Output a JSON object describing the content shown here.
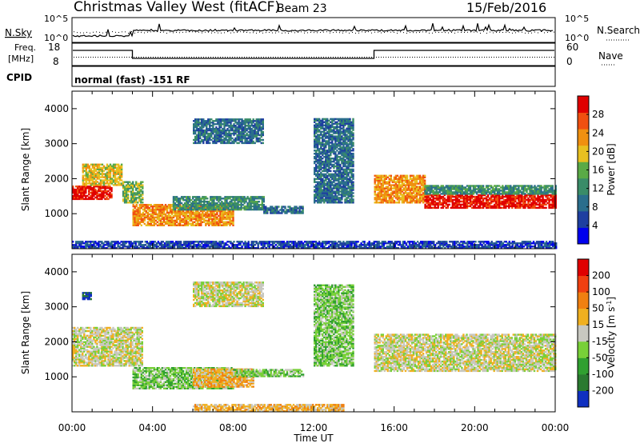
{
  "header": {
    "title": "Christmas Valley West (fitACF)",
    "beam": "Beam 23",
    "date": "15/Feb/2016"
  },
  "strips": {
    "nsky_label": "N.Sky",
    "nsky_ticks": [
      "10^5",
      "10^0"
    ],
    "nsearch_label": "N.Search",
    "nsearch_ticks": [
      "10^5",
      "10^0"
    ],
    "freq_label_1": "Freq.",
    "freq_label_2": "[MHz]",
    "freq_ticks": [
      "18",
      "8"
    ],
    "nave_label": "Nave",
    "nave_ticks": [
      "60",
      "0"
    ],
    "cpid_label": "CPID",
    "cpid_text": "normal (fast) -151 RF"
  },
  "x_axis": {
    "title": "Time UT",
    "ticks": [
      "00:00",
      "04:00",
      "08:00",
      "12:00",
      "16:00",
      "20:00",
      "00:00"
    ]
  },
  "colors": {
    "power_scale": [
      "#0000ee",
      "#1e3fa0",
      "#2a6e8c",
      "#3a8c68",
      "#5aaa46",
      "#e8c020",
      "#f09010",
      "#f05010",
      "#e00000"
    ],
    "velocity_scale": [
      "#1030c0",
      "#2a7a30",
      "#30a030",
      "#78d038",
      "#c8c8c0",
      "#f0b020",
      "#f08010",
      "#f04010",
      "#e00000"
    ]
  },
  "chart_data": [
    {
      "type": "heatmap",
      "name_key": "power",
      "ylabel": "Slant Range [km]",
      "xlabel": "Time UT",
      "x_range_hours": [
        0,
        24
      ],
      "ylim": [
        0,
        4500
      ],
      "y_ticks": [
        "4000",
        "3000",
        "2000",
        "1000"
      ],
      "colorbar_label": "Power [dB]",
      "colorbar_ticks": [
        "28",
        "24",
        "20",
        "16",
        "12",
        "8",
        "4"
      ],
      "bands": [
        {
          "t": [
            0.0,
            2.0
          ],
          "range": [
            1400,
            1800
          ],
          "level": 8
        },
        {
          "t": [
            0.5,
            2.5
          ],
          "range": [
            1800,
            2400
          ],
          "level": 5
        },
        {
          "t": [
            2.5,
            3.5
          ],
          "range": [
            1300,
            1900
          ],
          "level": 4
        },
        {
          "t": [
            3.0,
            8.0
          ],
          "range": [
            650,
            1250
          ],
          "level": 6
        },
        {
          "t": [
            5.0,
            9.5
          ],
          "range": [
            1100,
            1500
          ],
          "level": 3
        },
        {
          "t": [
            6.0,
            9.5
          ],
          "range": [
            3000,
            3700
          ],
          "level": 2
        },
        {
          "t": [
            9.5,
            11.5
          ],
          "range": [
            1000,
            1200
          ],
          "level": 2
        },
        {
          "t": [
            12.0,
            14.0
          ],
          "range": [
            1300,
            3700
          ],
          "level": 2
        },
        {
          "t": [
            15.0,
            17.5
          ],
          "range": [
            1300,
            2100
          ],
          "level": 6
        },
        {
          "t": [
            17.5,
            24.0
          ],
          "range": [
            1150,
            1550
          ],
          "level": 8
        },
        {
          "t": [
            17.5,
            24.0
          ],
          "range": [
            1550,
            1800
          ],
          "level": 3
        },
        {
          "t": [
            0.0,
            24.0
          ],
          "range": [
            0,
            200
          ],
          "level": 1
        }
      ]
    },
    {
      "type": "heatmap",
      "name_key": "velocity",
      "ylabel": "Slant Range [km]",
      "xlabel": "Time UT",
      "x_range_hours": [
        0,
        24
      ],
      "ylim": [
        0,
        4500
      ],
      "y_ticks": [
        "4000",
        "3000",
        "2000",
        "1000"
      ],
      "colorbar_label": "Velocity [m s^-1]",
      "colorbar_ticks": [
        "200",
        "100",
        "50",
        "15",
        "-15",
        "-50",
        "-100",
        "-200"
      ],
      "bands": [
        {
          "t": [
            0.0,
            3.5
          ],
          "range": [
            1300,
            2400
          ],
          "level": 4
        },
        {
          "t": [
            3.0,
            8.0
          ],
          "range": [
            650,
            1250
          ],
          "level": 3
        },
        {
          "t": [
            6.0,
            9.0
          ],
          "range": [
            700,
            1200
          ],
          "level": 5
        },
        {
          "t": [
            8.0,
            11.5
          ],
          "range": [
            1000,
            1200
          ],
          "level": 3
        },
        {
          "t": [
            6.0,
            9.5
          ],
          "range": [
            3000,
            3700
          ],
          "level": 4
        },
        {
          "t": [
            12.0,
            14.0
          ],
          "range": [
            1300,
            3600
          ],
          "level": 3
        },
        {
          "t": [
            15.0,
            24.0
          ],
          "range": [
            1150,
            2200
          ],
          "level": 4
        },
        {
          "t": [
            0.5,
            0.9
          ],
          "range": [
            3200,
            3400
          ],
          "level": 0
        },
        {
          "t": [
            6.0,
            13.5
          ],
          "range": [
            0,
            200
          ],
          "level": 5
        }
      ]
    }
  ]
}
